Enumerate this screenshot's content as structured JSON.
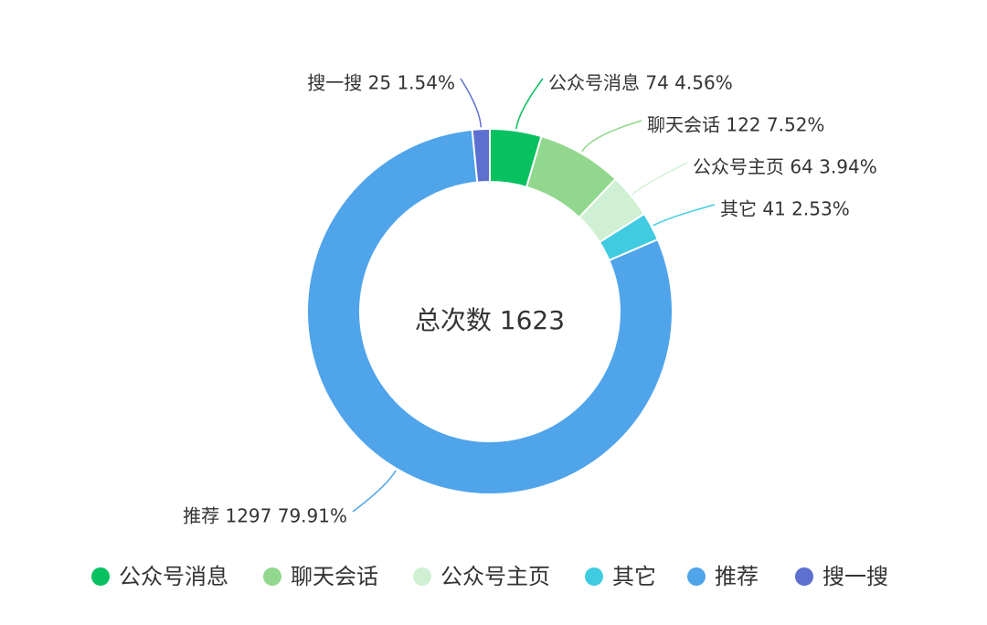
{
  "chart_data": {
    "type": "pie",
    "subtype": "donut",
    "center_label": "总次数 1623",
    "total": 1623,
    "legend_placement": "bottom",
    "slices": [
      {
        "name": "公众号消息",
        "value": 74,
        "percent": "4.56%",
        "color": "#07c160"
      },
      {
        "name": "聊天会话",
        "value": 122,
        "percent": "7.52%",
        "color": "#91d88e"
      },
      {
        "name": "公众号主页",
        "value": 64,
        "percent": "3.94%",
        "color": "#d0f0d3"
      },
      {
        "name": "其它",
        "value": 41,
        "percent": "2.53%",
        "color": "#40cbe0"
      },
      {
        "name": "推荐",
        "value": 1297,
        "percent": "79.91%",
        "color": "#4fa4ea"
      },
      {
        "name": "搜一搜",
        "value": 25,
        "percent": "1.54%",
        "color": "#5d6fcf"
      }
    ]
  }
}
